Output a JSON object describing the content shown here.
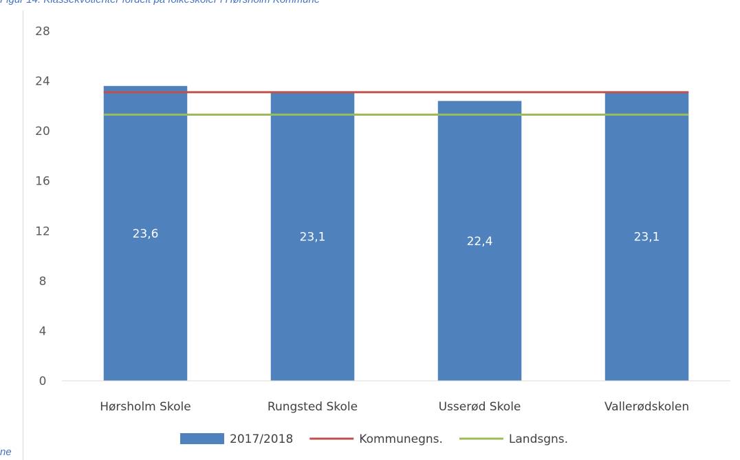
{
  "caption": "Figur 14: Klassekvotienter fordelt på folkeskoler i Hørsholm Kommune",
  "footer_fragment": "ne",
  "chart_data": {
    "type": "bar",
    "categories": [
      "Hørsholm Skole",
      "Rungsted Skole",
      "Usserød Skole",
      "Vallerødskolen"
    ],
    "series": [
      {
        "name": "2017/2018",
        "type": "bar",
        "color": "#4f81bd",
        "values": [
          23.6,
          23.1,
          22.4,
          23.1
        ]
      },
      {
        "name": "Kommunegns.",
        "type": "line",
        "color": "#c0504d",
        "values": [
          23.1,
          23.1,
          23.1,
          23.1
        ]
      },
      {
        "name": "Landsgns.",
        "type": "line",
        "color": "#9bbb59",
        "values": [
          21.3,
          21.3,
          21.3,
          21.3
        ]
      }
    ],
    "data_labels": [
      "23,6",
      "23,1",
      "22,4",
      "23,1"
    ],
    "ylim": [
      0,
      28
    ],
    "yticks": [
      0,
      4,
      8,
      12,
      16,
      20,
      24,
      28
    ],
    "ytick_labels": [
      "0",
      "4",
      "8",
      "12",
      "16",
      "20",
      "24",
      "28"
    ],
    "grid": false,
    "legend_position": "bottom",
    "title": "",
    "xlabel": "",
    "ylabel": ""
  }
}
